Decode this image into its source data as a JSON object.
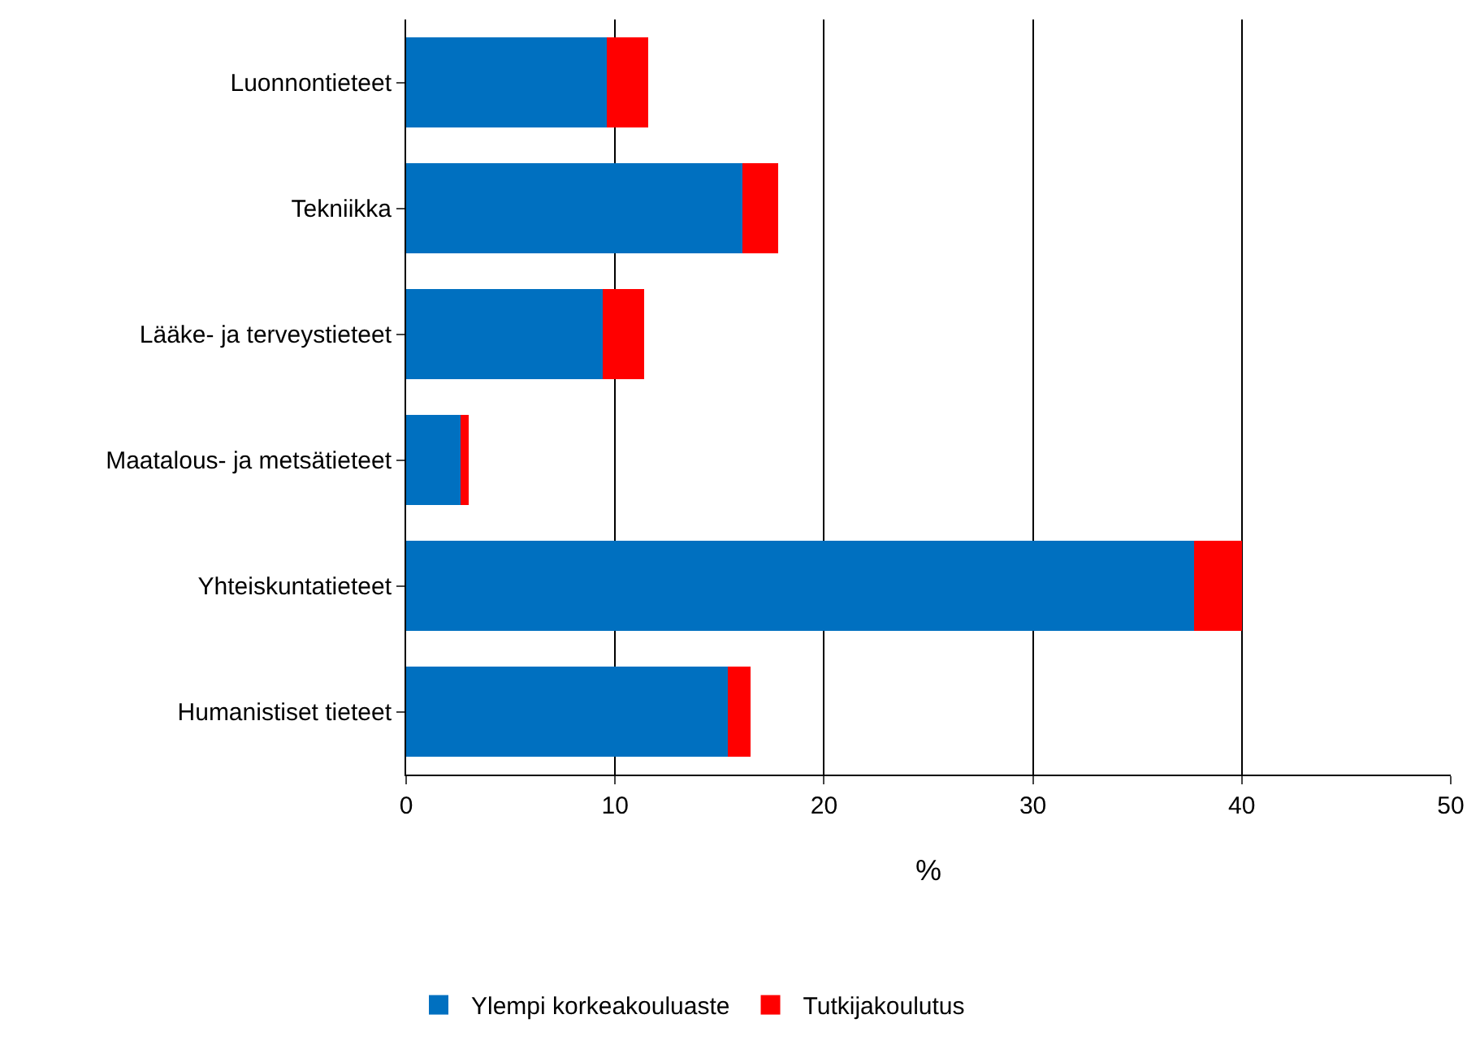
{
  "chart_data": {
    "type": "bar",
    "orientation": "horizontal",
    "stacked": true,
    "xlabel": "%",
    "categories": [
      "Luonnontieteet",
      "Tekniikka",
      "Lääke- ja terveystieteet",
      "Maatalous- ja metsätieteet",
      "Yhteiskuntatieteet",
      "Humanistiset tieteet"
    ],
    "series": [
      {
        "name": "Ylempi korkeakouluaste",
        "color": "#0070c0",
        "values": [
          9.6,
          16.1,
          9.4,
          2.6,
          37.7,
          15.4
        ]
      },
      {
        "name": "Tutkijakoulutus",
        "color": "#ff0000",
        "values": [
          2.0,
          1.7,
          2.0,
          0.4,
          2.3,
          1.1
        ]
      }
    ],
    "xlim": [
      0,
      50
    ],
    "xticks": [
      0,
      10,
      20,
      30,
      40,
      50
    ],
    "grid": "x",
    "legend": "bottom"
  }
}
